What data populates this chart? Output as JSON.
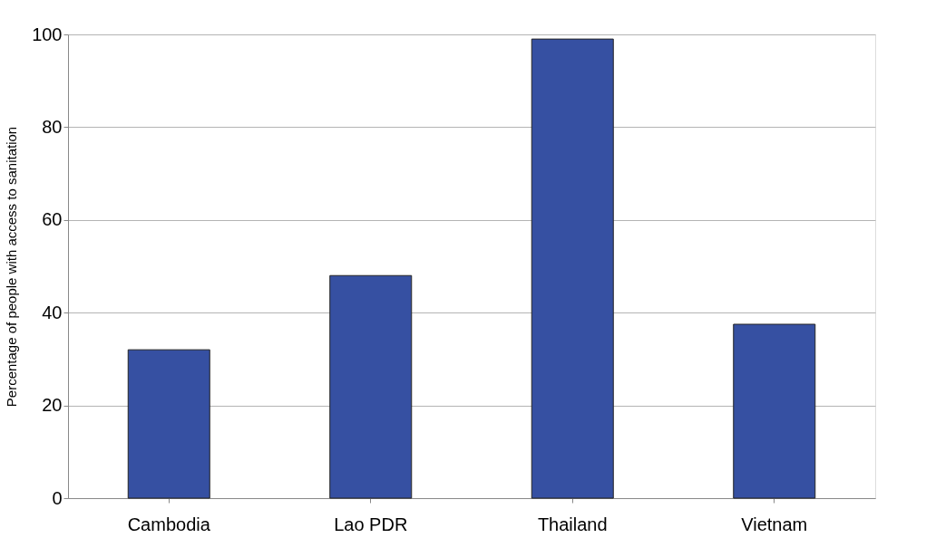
{
  "chart_data": {
    "type": "bar",
    "ylabel": "Percentage of people with access to sanitation",
    "categories": [
      "Cambodia",
      "Lao PDR",
      "Thailand",
      "Vietnam"
    ],
    "values": [
      32,
      48,
      99,
      37.5
    ],
    "color": "#3650a2",
    "ylim": [
      0,
      100
    ],
    "yticks": [
      0,
      20,
      40,
      60,
      80,
      100
    ],
    "grid": "y"
  }
}
